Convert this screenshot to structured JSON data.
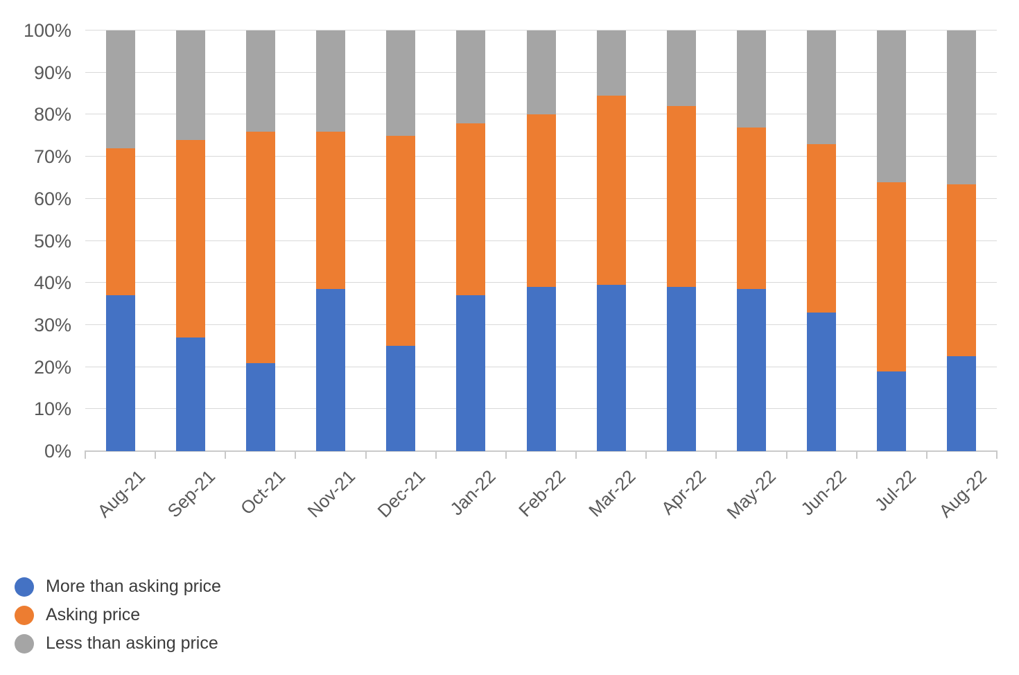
{
  "chart_data": {
    "type": "bar",
    "subtype": "stacked-100-percent",
    "title": "",
    "xlabel": "",
    "ylabel": "",
    "categories": [
      "Aug-21",
      "Sep-21",
      "Oct-21",
      "Nov-21",
      "Dec-21",
      "Jan-22",
      "Feb-22",
      "Mar-22",
      "Apr-22",
      "May-22",
      "Jun-22",
      "Jul-22",
      "Aug-22"
    ],
    "series": [
      {
        "name": "More than asking price",
        "color": "#4472C4",
        "values": [
          37,
          27,
          21,
          38.5,
          25,
          37,
          39,
          39.5,
          39,
          38.5,
          33,
          19,
          22.5
        ]
      },
      {
        "name": "Asking price",
        "color": "#ED7D31",
        "values": [
          35,
          47,
          55,
          37.5,
          50,
          41,
          41,
          45,
          43,
          38.5,
          40,
          45,
          41
        ]
      },
      {
        "name": "Less than asking price",
        "color": "#A5A5A5",
        "values": [
          28,
          26,
          24,
          24,
          25,
          22,
          20,
          15.5,
          18,
          23,
          27,
          36,
          36.5
        ]
      }
    ],
    "ylim": [
      0,
      100
    ],
    "ytick_step": 10,
    "ytick_labels": [
      "0%",
      "10%",
      "20%",
      "30%",
      "40%",
      "50%",
      "60%",
      "70%",
      "80%",
      "90%",
      "100%"
    ],
    "grid": true,
    "legend_position": "bottom-left"
  },
  "colors": {
    "more_than_asking": "#4472C4",
    "asking": "#ED7D31",
    "less_than_asking": "#A5A5A5",
    "axis_text": "#595959",
    "legend_text": "#3B3B3B",
    "gridline": "#D9D9D9",
    "axis_line": "#C9C9C9",
    "background": "#FFFFFF"
  }
}
